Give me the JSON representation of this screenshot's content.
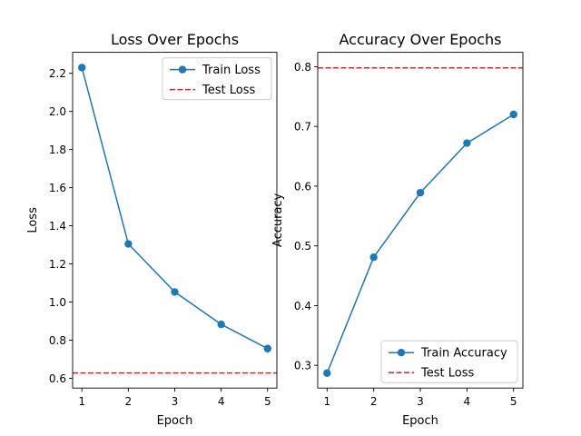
{
  "chart_data": [
    {
      "type": "line",
      "title": "Loss Over Epochs",
      "xlabel": "Epoch",
      "ylabel": "Loss",
      "x": [
        1,
        2,
        3,
        4,
        5
      ],
      "xlim": [
        0.8,
        5.2
      ],
      "ylim": [
        0.549,
        2.31
      ],
      "xticks": [
        "1",
        "2",
        "3",
        "4",
        "5"
      ],
      "yticks": [
        "0.6",
        "0.8",
        "1.0",
        "1.2",
        "1.4",
        "1.6",
        "1.8",
        "2.0",
        "2.2"
      ],
      "series": [
        {
          "name": "Train Loss",
          "values": [
            2.23,
            1.305,
            1.053,
            0.883,
            0.756
          ],
          "style": "solid",
          "marker": "circle"
        },
        {
          "name": "Test Loss",
          "hline": 0.628,
          "style": "dashed"
        }
      ],
      "legend": "top-right",
      "grid": false
    },
    {
      "type": "line",
      "title": "Accuracy Over Epochs",
      "xlabel": "Epoch",
      "ylabel": "Accuracy",
      "x": [
        1,
        2,
        3,
        4,
        5
      ],
      "xlim": [
        0.8,
        5.2
      ],
      "ylim": [
        0.262,
        0.824
      ],
      "xticks": [
        "1",
        "2",
        "3",
        "4",
        "5"
      ],
      "yticks": [
        "0.3",
        "0.4",
        "0.5",
        "0.6",
        "0.7",
        "0.8"
      ],
      "series": [
        {
          "name": "Train Accuracy",
          "values": [
            0.287,
            0.481,
            0.589,
            0.672,
            0.72
          ],
          "style": "solid",
          "marker": "circle"
        },
        {
          "name": "Test Loss",
          "hline": 0.798,
          "style": "dashed"
        }
      ],
      "legend": "bottom-right",
      "grid": false
    }
  ],
  "colors": {
    "train": "#1f77b4",
    "test": "#d62728"
  }
}
